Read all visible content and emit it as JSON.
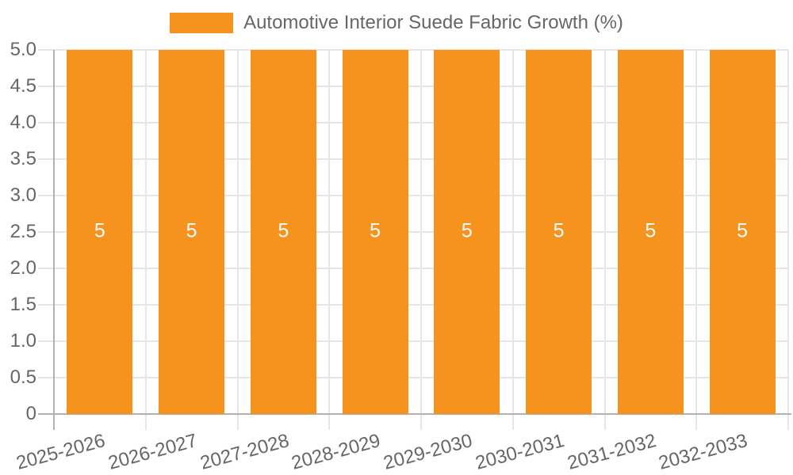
{
  "legend": {
    "label": "Automotive Interior Suede Fabric Growth (%)"
  },
  "colors": {
    "bar": "#F6921E",
    "grid": "#E6E6E6",
    "axis": "#B1B1B1",
    "text": "#666666",
    "value_label": "#FFFFFF",
    "background": "#FFFFFF"
  },
  "chart_data": {
    "type": "bar",
    "title": "Automotive Interior Suede Fabric Growth (%)",
    "legend_position": "top",
    "grid": true,
    "categories": [
      "2025-2026",
      "2026-2027",
      "2027-2028",
      "2028-2029",
      "2029-2030",
      "2030-2031",
      "2031-2032",
      "2032-2033"
    ],
    "series": [
      {
        "name": "Automotive Interior Suede Fabric Growth (%)",
        "values": [
          5,
          5,
          5,
          5,
          5,
          5,
          5,
          5
        ]
      }
    ],
    "value_labels": [
      "5",
      "5",
      "5",
      "5",
      "5",
      "5",
      "5",
      "5"
    ],
    "ylim": [
      0,
      5
    ],
    "y_tick_step": 0.5,
    "y_ticks_top_to_bottom": [
      "5.0",
      "4.5",
      "4.0",
      "3.5",
      "3.0",
      "2.5",
      "2.0",
      "1.5",
      "1.0",
      "0.5",
      "0"
    ],
    "x_tick_rotation_deg": 15,
    "xlabel": "",
    "ylabel": ""
  }
}
